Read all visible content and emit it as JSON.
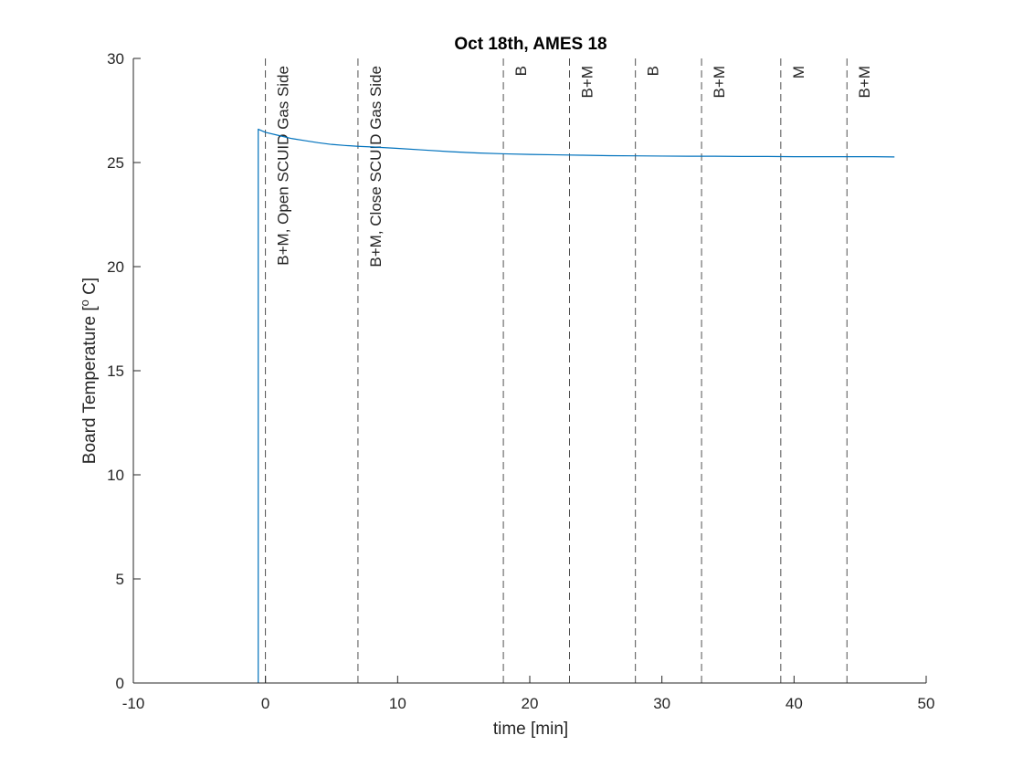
{
  "chart_data": {
    "type": "line",
    "title": "Oct 18th, AMES 18",
    "xlabel": "time [min]",
    "ylabel_main": "Board Temperature [",
    "ylabel_sup": "o",
    "ylabel_tail": " C]",
    "xlim": [
      -10,
      50
    ],
    "ylim": [
      0,
      30
    ],
    "xticks": [
      -10,
      0,
      10,
      20,
      30,
      40,
      50
    ],
    "yticks": [
      0,
      5,
      10,
      15,
      20,
      25,
      30
    ],
    "xtick_labels": [
      "-10",
      "0",
      "10",
      "20",
      "30",
      "40",
      "50"
    ],
    "ytick_labels": [
      "0",
      "5",
      "10",
      "15",
      "20",
      "25",
      "30"
    ],
    "grid": false,
    "series": [
      {
        "color": "#0072BD",
        "x": [
          -0.55,
          -0.55,
          0,
          1,
          2,
          3,
          4,
          5,
          6,
          7,
          8,
          10,
          12,
          14,
          16,
          18,
          20,
          22,
          24,
          26,
          28,
          30,
          32,
          34,
          36,
          38,
          40,
          42,
          44,
          46,
          47.6
        ],
        "y": [
          0,
          26.6,
          26.45,
          26.3,
          26.15,
          26.05,
          25.95,
          25.87,
          25.82,
          25.78,
          25.75,
          25.68,
          25.6,
          25.52,
          25.46,
          25.42,
          25.39,
          25.37,
          25.35,
          25.33,
          25.32,
          25.31,
          25.3,
          25.3,
          25.29,
          25.29,
          25.28,
          25.28,
          25.28,
          25.28,
          25.27
        ]
      }
    ],
    "events": [
      {
        "x": 0,
        "label": "B+M, Open SCUID Gas Side"
      },
      {
        "x": 7,
        "label": "B+M, Close SCUID Gas Side"
      },
      {
        "x": 18,
        "label": "B"
      },
      {
        "x": 23,
        "label": "B+M"
      },
      {
        "x": 28,
        "label": "B"
      },
      {
        "x": 33,
        "label": "B+M"
      },
      {
        "x": 39,
        "label": "M"
      },
      {
        "x": 44,
        "label": "B+M"
      }
    ]
  }
}
